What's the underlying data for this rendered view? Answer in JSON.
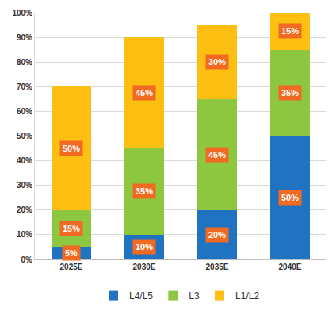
{
  "chart_data": {
    "type": "bar",
    "stacked": true,
    "data_labels": true,
    "grid": true,
    "legend": "bottom",
    "categories": [
      "2025E",
      "2030E",
      "2035E",
      "2040E"
    ],
    "series": [
      {
        "name": "L4/L5",
        "color": "#1f73c0",
        "values": [
          5,
          10,
          20,
          50
        ],
        "value_labels": [
          "5%",
          "10%",
          "20%",
          "50%"
        ]
      },
      {
        "name": "L3",
        "color": "#8dc63f",
        "values": [
          15,
          35,
          45,
          35
        ],
        "value_labels": [
          "15%",
          "35%",
          "45%",
          "35%"
        ]
      },
      {
        "name": "L1/L2",
        "color": "#fcbf12",
        "values": [
          50,
          45,
          30,
          15
        ],
        "value_labels": [
          "50%",
          "45%",
          "30%",
          "15%"
        ]
      }
    ],
    "ylim": [
      0,
      100
    ],
    "yticks": [
      {
        "value": 0,
        "label": "0%"
      },
      {
        "value": 10,
        "label": "10%"
      },
      {
        "value": 20,
        "label": "20%"
      },
      {
        "value": 30,
        "label": "30%"
      },
      {
        "value": 40,
        "label": "40%"
      },
      {
        "value": 50,
        "label": "50%"
      },
      {
        "value": 60,
        "label": "60%"
      },
      {
        "value": 70,
        "label": "70%"
      },
      {
        "value": 80,
        "label": "80%"
      },
      {
        "value": 90,
        "label": "90%"
      },
      {
        "value": 100,
        "label": "100%"
      }
    ]
  }
}
